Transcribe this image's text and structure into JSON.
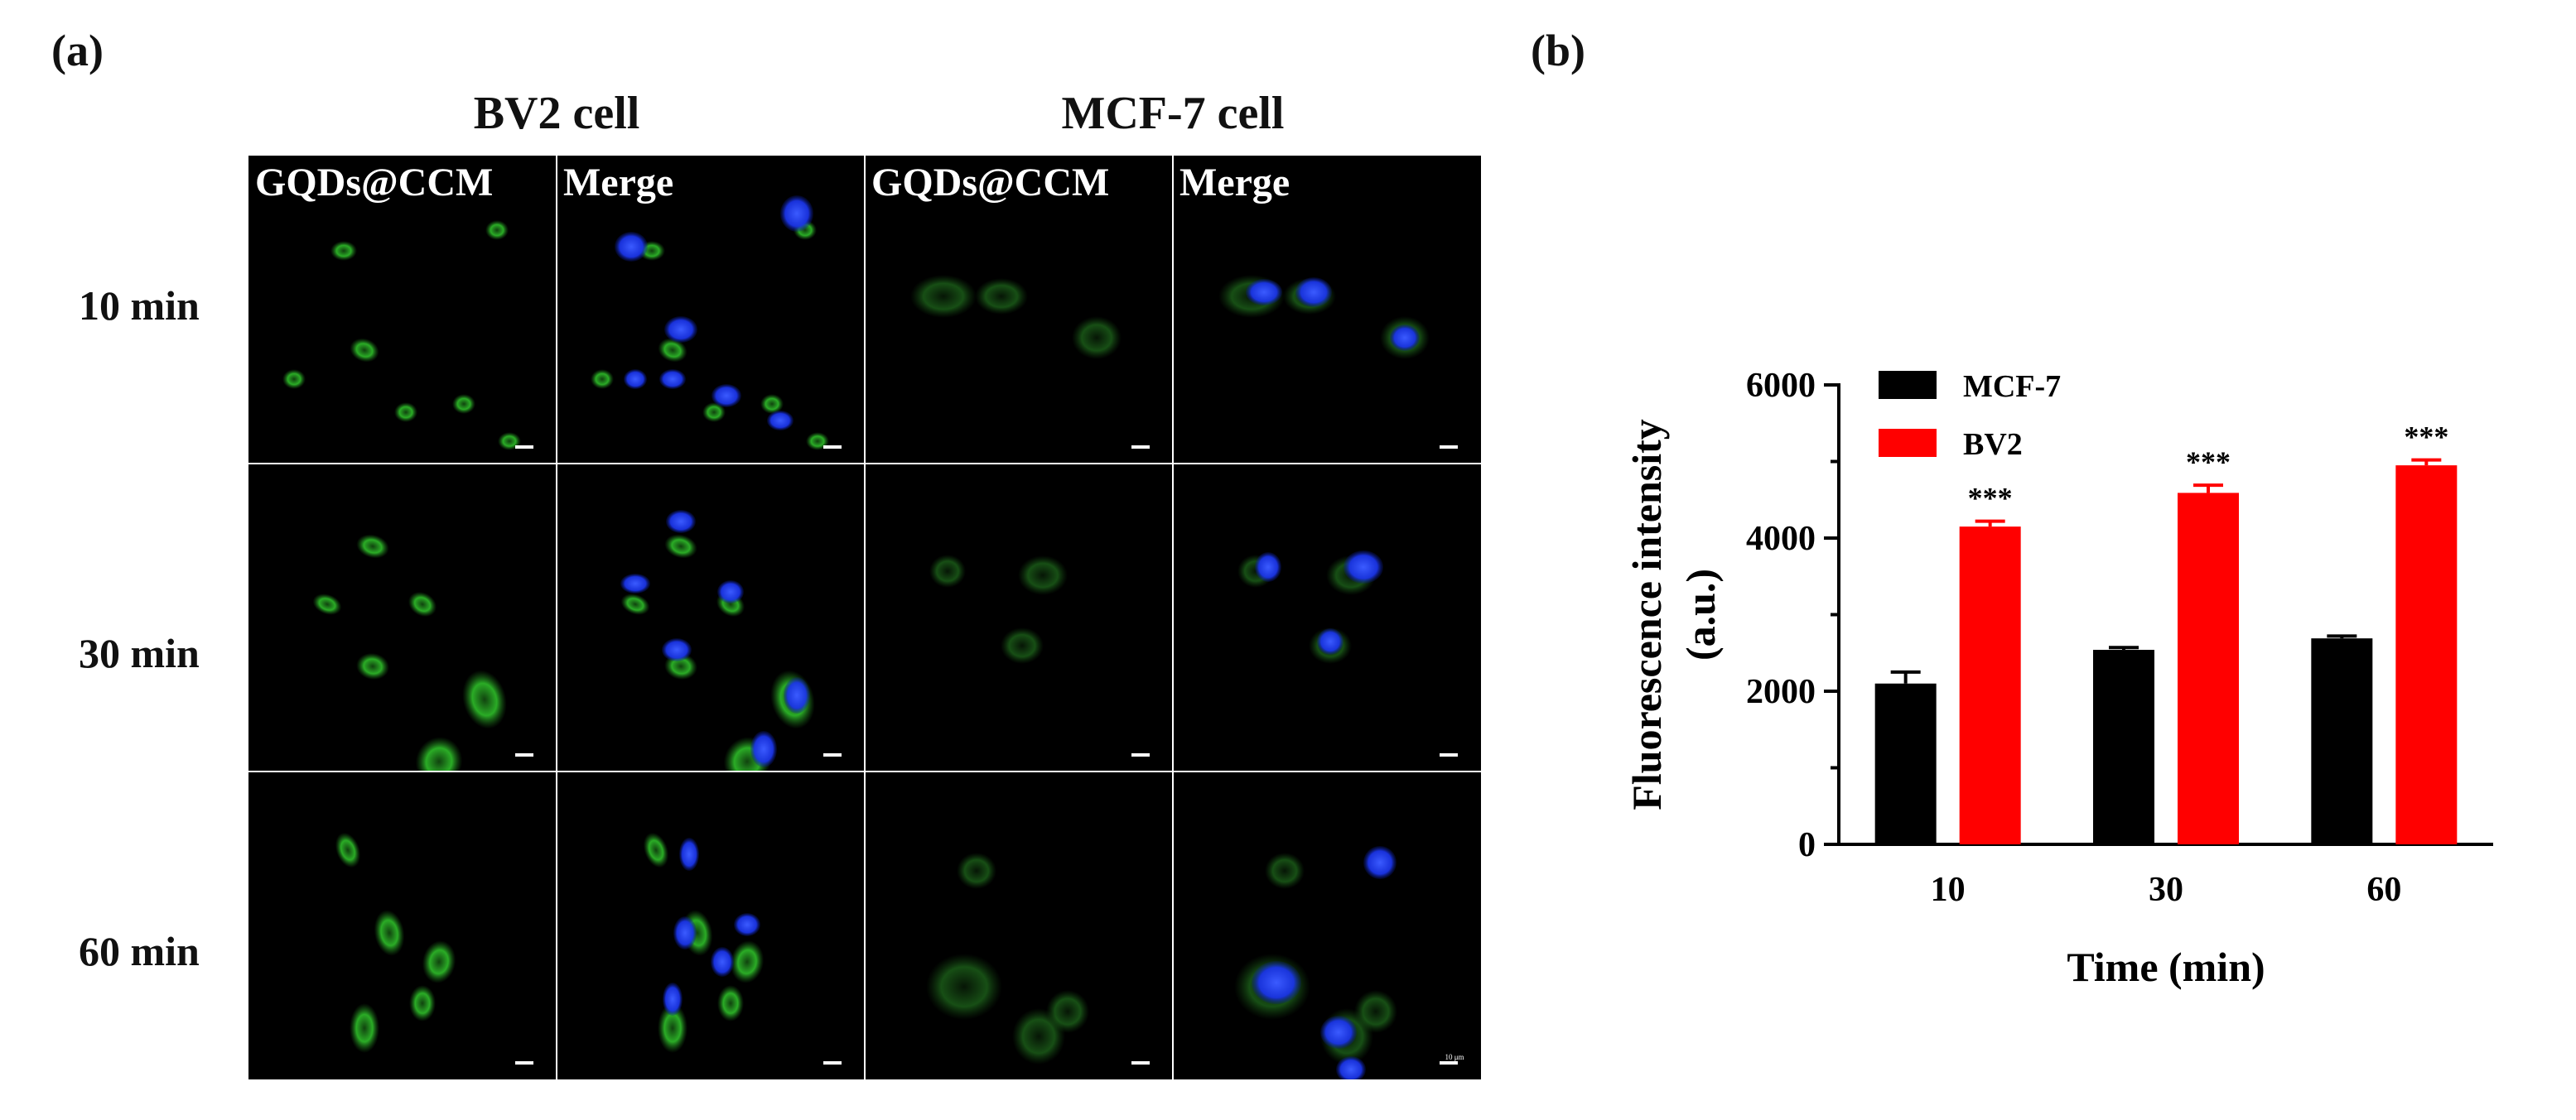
{
  "panel_a": {
    "label": "(a)",
    "groups": [
      {
        "label": "BV2 cell"
      },
      {
        "label": "MCF-7 cell"
      }
    ],
    "column_labels": [
      "GQDs@CCM",
      "Merge",
      "GQDs@CCM",
      "Merge"
    ],
    "row_labels": [
      "10 min",
      "30 min",
      "60 min"
    ],
    "tiny_scale_text": "10 μm",
    "colors": {
      "background": "#000000",
      "green_channel": "#2fbf2a",
      "blue_channel": "#1a3cff",
      "grid_line": "#ffffff"
    }
  },
  "panel_b": {
    "label": "(b)"
  },
  "chart_data": {
    "type": "bar",
    "categories": [
      "10",
      "30",
      "60"
    ],
    "xlabel": "Time (min)",
    "ylabel_lines": [
      "Fluorescence intensity",
      "(a.u.)"
    ],
    "ylim": [
      0,
      6000
    ],
    "yticks": [
      0,
      2000,
      4000,
      6000
    ],
    "grid": false,
    "legend_position": "top-left",
    "series": [
      {
        "name": "MCF-7",
        "color": "#000000",
        "values": [
          2100,
          2540,
          2690
        ],
        "errors": [
          150,
          30,
          30
        ]
      },
      {
        "name": "BV2",
        "color": "#ff0000",
        "values": [
          4150,
          4590,
          4950
        ],
        "errors": [
          70,
          100,
          70
        ]
      }
    ],
    "annotations": [
      "***",
      "***",
      "***"
    ]
  }
}
